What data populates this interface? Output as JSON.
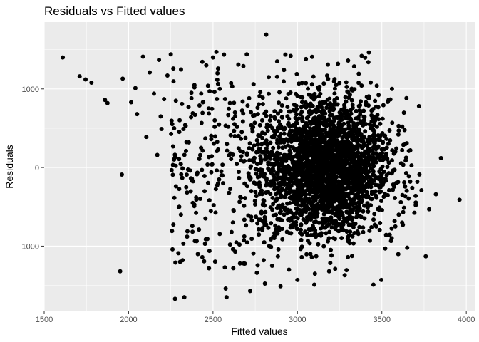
{
  "chart_data": {
    "type": "scatter",
    "title": "Residuals vs Fitted values",
    "xlabel": "Fitted values",
    "ylabel": "Residuals",
    "xlim": [
      1500,
      4050
    ],
    "ylim": [
      -1830,
      1850
    ],
    "x_ticks": [
      1500,
      2000,
      2500,
      3000,
      3500,
      4000
    ],
    "x_tick_labels": [
      "1500",
      "2000",
      "2500",
      "3000",
      "3500",
      "4000"
    ],
    "y_ticks": [
      -1000,
      0,
      1000
    ],
    "y_tick_labels": [
      "-1000",
      "0",
      "1000"
    ],
    "grid": true,
    "point_color": "#000000",
    "panel_background": "#ebebeb",
    "grid_color": "#ffffff",
    "cluster": {
      "x_mean": 3170,
      "x_sd": 190,
      "y_sd": 430
    },
    "points": [
      [
        1610,
        1400
      ],
      [
        1710,
        1160
      ],
      [
        1745,
        1120
      ],
      [
        1780,
        1080
      ],
      [
        1860,
        860
      ],
      [
        1875,
        820
      ],
      [
        1965,
        1130
      ],
      [
        1960,
        -90
      ],
      [
        1950,
        -1320
      ],
      [
        2015,
        830
      ],
      [
        2040,
        1010
      ],
      [
        2050,
        680
      ],
      [
        2085,
        1410
      ],
      [
        2105,
        390
      ],
      [
        2125,
        1210
      ],
      [
        2150,
        940
      ],
      [
        2170,
        160
      ],
      [
        2180,
        1370
      ],
      [
        2190,
        650
      ],
      [
        2195,
        490
      ],
      [
        2210,
        870
      ],
      [
        2230,
        1170
      ],
      [
        2250,
        1440
      ],
      [
        2260,
        -1040
      ],
      [
        2265,
        1260
      ],
      [
        2270,
        500
      ],
      [
        2275,
        -1670
      ],
      [
        2280,
        850
      ],
      [
        2295,
        -1090
      ],
      [
        2300,
        -500
      ],
      [
        2305,
        -1200
      ],
      [
        2310,
        -600
      ],
      [
        2320,
        -1180
      ],
      [
        2325,
        490
      ],
      [
        2330,
        -1650
      ],
      [
        2335,
        540
      ],
      [
        2340,
        210
      ],
      [
        2355,
        770
      ],
      [
        2370,
        640
      ],
      [
        2380,
        690
      ],
      [
        2390,
        1020
      ],
      [
        2400,
        -380
      ],
      [
        2410,
        -1100
      ],
      [
        2420,
        790
      ],
      [
        2430,
        940
      ],
      [
        2440,
        830
      ],
      [
        2450,
        -300
      ],
      [
        2460,
        1300
      ],
      [
        2470,
        1040
      ],
      [
        2480,
        970
      ],
      [
        2490,
        -60
      ],
      [
        2500,
        1400
      ],
      [
        2510,
        600
      ],
      [
        2520,
        1470
      ],
      [
        2530,
        1260
      ],
      [
        2540,
        1000
      ],
      [
        2550,
        -100
      ],
      [
        2560,
        -200
      ],
      [
        2570,
        -1270
      ],
      [
        2575,
        -1540
      ],
      [
        2580,
        -1650
      ],
      [
        2590,
        520
      ],
      [
        2600,
        820
      ],
      [
        2610,
        -820
      ],
      [
        2620,
        -1280
      ],
      [
        2630,
        700
      ],
      [
        2650,
        1310
      ],
      [
        2660,
        -1220
      ],
      [
        2680,
        1290
      ],
      [
        2700,
        1440
      ],
      [
        2720,
        -1570
      ],
      [
        2740,
        1060
      ],
      [
        2760,
        -1340
      ],
      [
        2780,
        960
      ],
      [
        2800,
        -1180
      ],
      [
        2815,
        1690
      ],
      [
        2830,
        1150
      ],
      [
        2850,
        -1250
      ],
      [
        2880,
        1350
      ],
      [
        2900,
        -1510
      ],
      [
        2920,
        1240
      ],
      [
        2950,
        -1300
      ],
      [
        2960,
        1420
      ],
      [
        3000,
        -1430
      ],
      [
        3050,
        1380
      ],
      [
        3100,
        -1490
      ],
      [
        3180,
        1310
      ],
      [
        3240,
        1320
      ],
      [
        3280,
        -1370
      ],
      [
        3300,
        1360
      ],
      [
        3380,
        1420
      ],
      [
        3420,
        1340
      ],
      [
        3450,
        -1490
      ],
      [
        3470,
        1040
      ],
      [
        3520,
        -1030
      ],
      [
        3560,
        1000
      ],
      [
        3580,
        -750
      ],
      [
        3600,
        470
      ],
      [
        3620,
        -700
      ],
      [
        3650,
        -1020
      ],
      [
        3660,
        210
      ],
      [
        3700,
        -360
      ],
      [
        3720,
        780
      ],
      [
        3760,
        -1130
      ],
      [
        3780,
        -530
      ],
      [
        3820,
        -340
      ],
      [
        3850,
        120
      ],
      [
        3960,
        -410
      ],
      [
        3640,
        300
      ],
      [
        3580,
        200
      ],
      [
        3600,
        -600
      ],
      [
        3540,
        860
      ],
      [
        3680,
        -260
      ],
      [
        3620,
        220
      ]
    ]
  }
}
